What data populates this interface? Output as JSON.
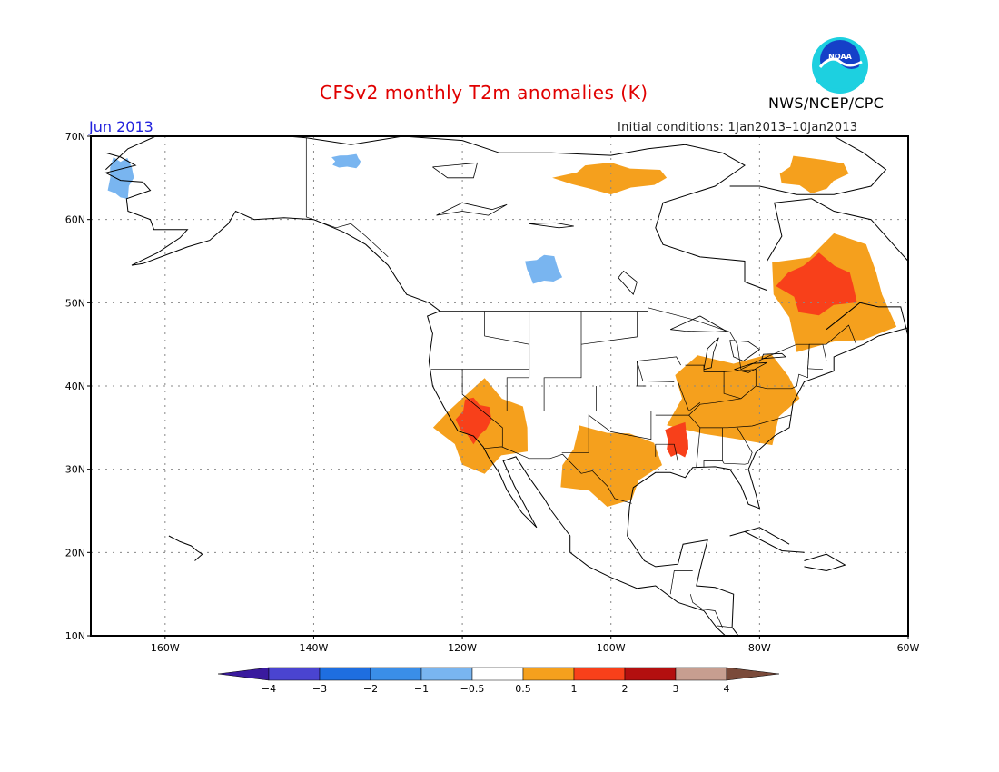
{
  "title": "CFSv2 monthly T2m anomalies (K)",
  "month": "Jun 2013",
  "initial_conditions": "Initial conditions: 1Jan2013–10Jan2013",
  "agency": "NWS/NCEP/CPC",
  "logo_text": "NOAA",
  "map": {
    "region": "North America",
    "lon_range": [
      -170,
      -60
    ],
    "lat_range": [
      10,
      70
    ],
    "lat_ticks": [
      {
        "value": 70,
        "label": "70N"
      },
      {
        "value": 60,
        "label": "60N"
      },
      {
        "value": 50,
        "label": "50N"
      },
      {
        "value": 40,
        "label": "40N"
      },
      {
        "value": 30,
        "label": "30N"
      },
      {
        "value": 20,
        "label": "20N"
      },
      {
        "value": 10,
        "label": "10N"
      }
    ],
    "lon_ticks": [
      {
        "value": -160,
        "label": "160W"
      },
      {
        "value": -140,
        "label": "140W"
      },
      {
        "value": -120,
        "label": "120W"
      },
      {
        "value": -100,
        "label": "100W"
      },
      {
        "value": -80,
        "label": "80W"
      },
      {
        "value": -60,
        "label": "60W"
      }
    ],
    "grid": true,
    "anomaly_regions": [
      {
        "name": "southwest-us-warm",
        "bin": "0.5-1",
        "lon": [
          -124,
          -110
        ],
        "lat": [
          29,
          41
        ]
      },
      {
        "name": "southwest-us-hot",
        "bin": "1-2",
        "lon": [
          -121,
          -116
        ],
        "lat": [
          33,
          39
        ]
      },
      {
        "name": "south-central-us-warm",
        "bin": "0.5-1",
        "lon": [
          -108,
          -93
        ],
        "lat": [
          25,
          36
        ]
      },
      {
        "name": "east-us-warm",
        "bin": "0.5-1",
        "lon": [
          -94,
          -73
        ],
        "lat": [
          32,
          45
        ]
      },
      {
        "name": "mississippi-hot",
        "bin": "1-2",
        "lon": [
          -93,
          -89
        ],
        "lat": [
          31,
          36
        ]
      },
      {
        "name": "eastern-canada-warm",
        "bin": "0.5-1",
        "lon": [
          -80,
          -60
        ],
        "lat": [
          43,
          59
        ]
      },
      {
        "name": "quebec-hot",
        "bin": "1-2",
        "lon": [
          -78,
          -66
        ],
        "lat": [
          48,
          56
        ]
      },
      {
        "name": "northern-canada-warm",
        "bin": "0.5-1",
        "lon": [
          -108,
          -92
        ],
        "lat": [
          63,
          67
        ]
      },
      {
        "name": "labrador-warm",
        "bin": "0.5-1",
        "lon": [
          -78,
          -68
        ],
        "lat": [
          63,
          68
        ]
      },
      {
        "name": "alaska-cool",
        "bin": "-1--0.5",
        "lon": [
          -168,
          -164
        ],
        "lat": [
          62,
          68
        ]
      },
      {
        "name": "nw-canada-cool",
        "bin": "-1--0.5",
        "lon": [
          -138,
          -133
        ],
        "lat": [
          66,
          68
        ]
      },
      {
        "name": "west-canada-cool",
        "bin": "-1--0.5",
        "lon": [
          -112,
          -106
        ],
        "lat": [
          52,
          56
        ]
      }
    ]
  },
  "colorbar": {
    "labels": [
      "−4",
      "−3",
      "−2",
      "−1",
      "−0.5",
      "0.5",
      "1",
      "2",
      "3",
      "4"
    ],
    "colors": [
      "#3a1a9e",
      "#4a44d0",
      "#1e6ee0",
      "#3a8ee8",
      "#79b5f0",
      "#ffffff",
      "#f5a01d",
      "#f8401a",
      "#b30f0f",
      "#c79e90",
      "#7a4a3a"
    ]
  }
}
